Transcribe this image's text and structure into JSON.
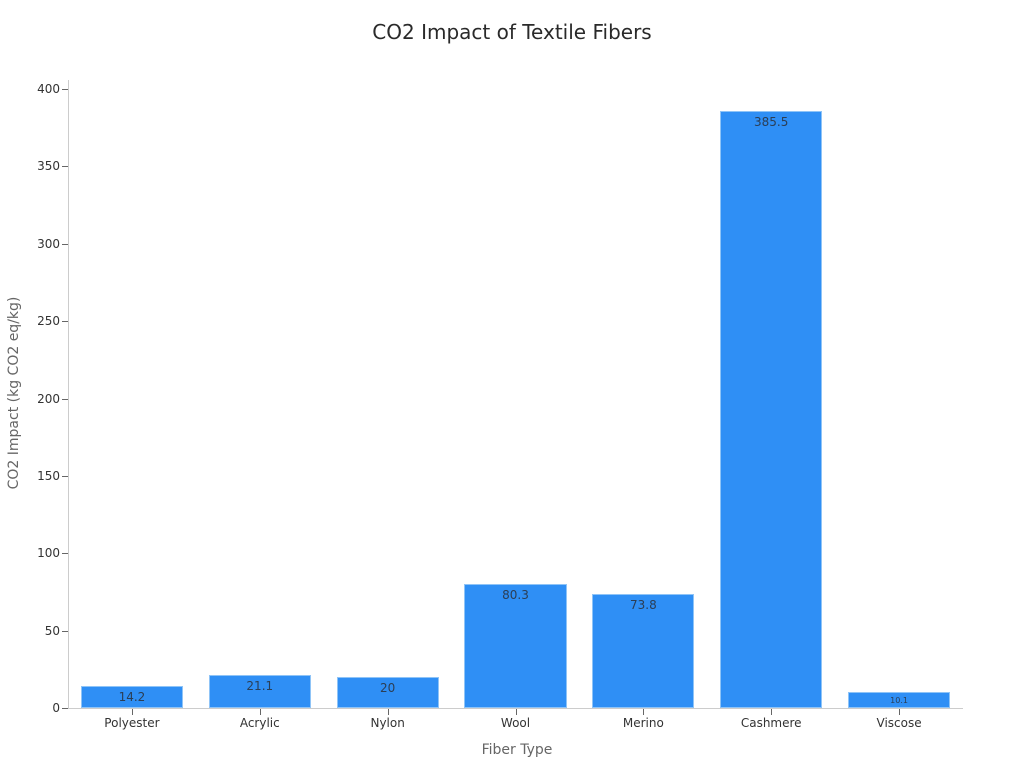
{
  "chart_data": {
    "type": "bar",
    "title": "CO2 Impact of Textile Fibers",
    "xlabel": "Fiber Type",
    "ylabel": "CO2 Impact (kg CO2 eq/kg)",
    "categories": [
      "Polyester",
      "Acrylic",
      "Nylon",
      "Wool",
      "Merino",
      "Cashmere",
      "Viscose"
    ],
    "values": [
      14.2,
      21.1,
      20,
      80.3,
      73.8,
      385.5,
      10.1
    ],
    "value_labels": [
      "14.2",
      "21.1",
      "20",
      "80.3",
      "73.8",
      "385.5",
      "10.1"
    ],
    "yticks": [
      0,
      50,
      100,
      150,
      200,
      250,
      300,
      350,
      400
    ],
    "ytick_labels": [
      "0",
      "50",
      "100",
      "150",
      "200",
      "250",
      "300",
      "350",
      "400"
    ],
    "ylim": [
      0,
      405
    ],
    "grid": false,
    "legend": null,
    "colors": {
      "bar": "#2f8ff5",
      "bar_border": "#8fc4f7",
      "axis": "#cccccc"
    }
  }
}
